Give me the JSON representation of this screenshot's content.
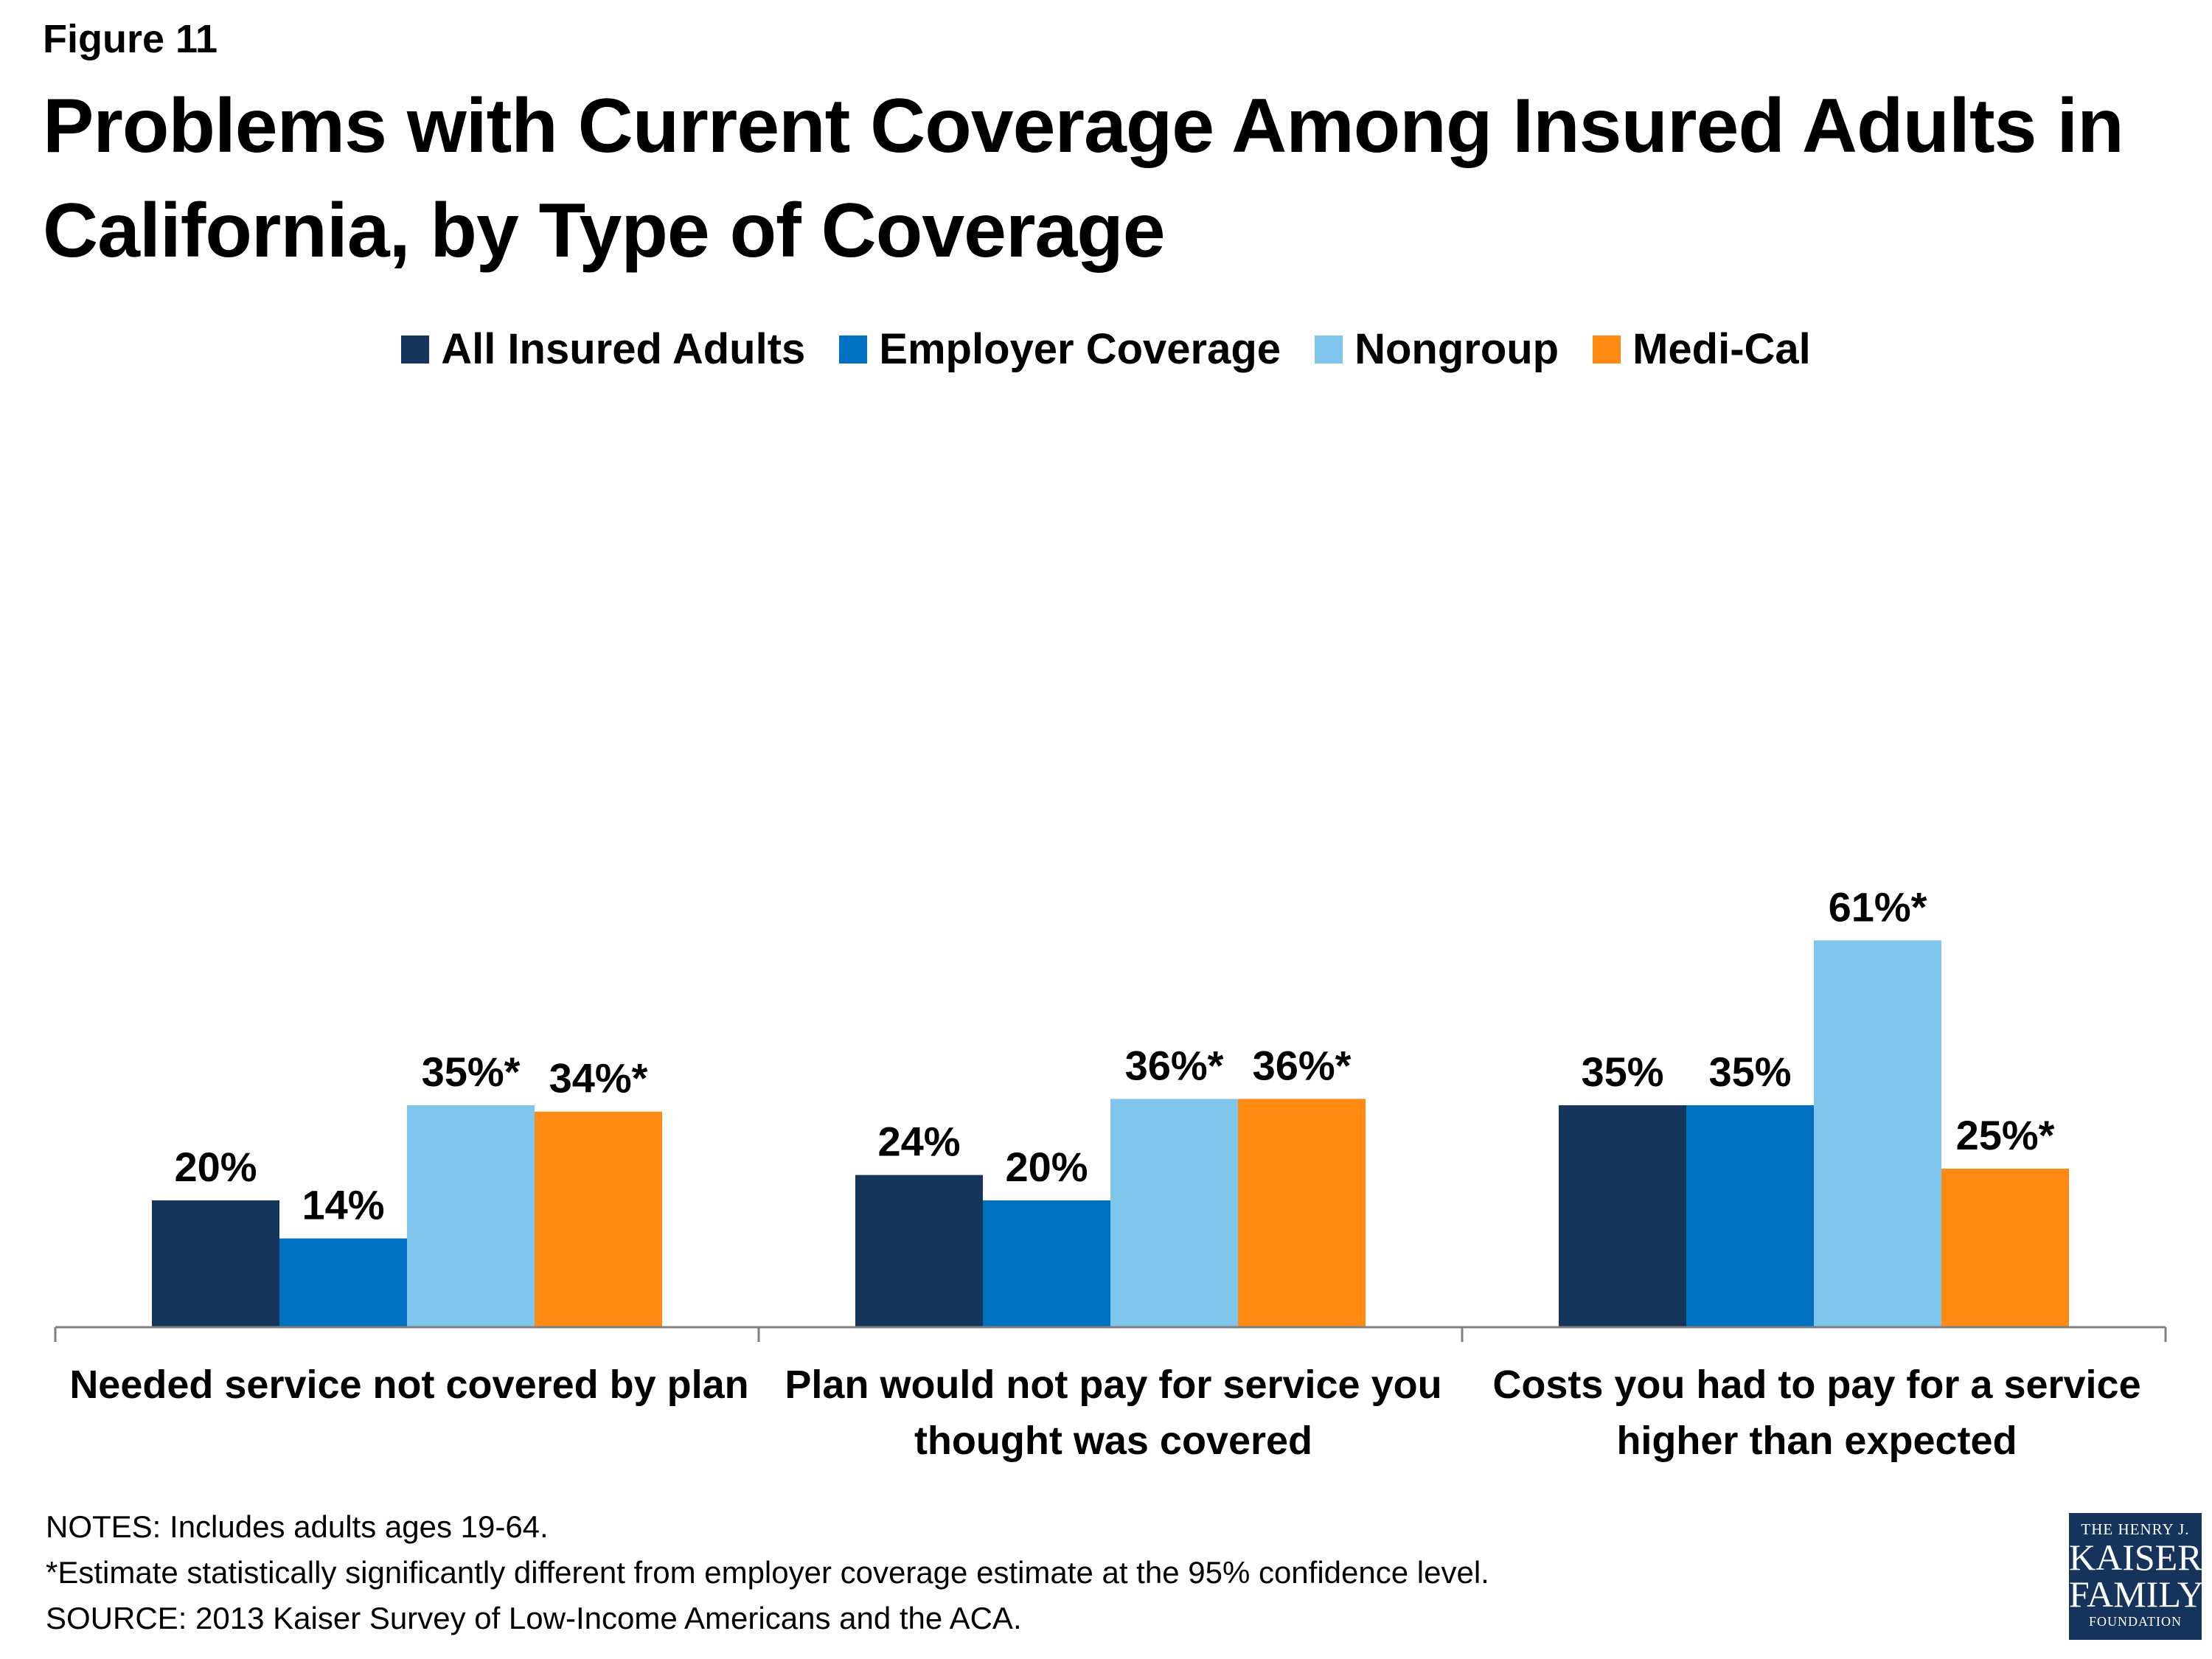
{
  "figure_label": "Figure 11",
  "title": "Problems with Current Coverage Among Insured Adults in California, by Type of Coverage",
  "colors": {
    "all_insured": "#16355b",
    "employer": "#0070c0",
    "nongroup": "#7fc5ec",
    "medical": "#ff8a14",
    "axis": "#808080"
  },
  "chart_data": {
    "type": "bar",
    "categories": [
      "Needed service not covered by plan",
      "Plan would not pay for service you thought was covered",
      "Costs you had to pay for a service higher than expected"
    ],
    "series": [
      {
        "name": "All Insured Adults",
        "values": [
          20,
          24,
          35
        ],
        "labels": [
          "20%",
          "24%",
          "35%"
        ]
      },
      {
        "name": "Employer Coverage",
        "values": [
          14,
          20,
          35
        ],
        "labels": [
          "14%",
          "20%",
          "35%"
        ]
      },
      {
        "name": "Nongroup",
        "values": [
          35,
          36,
          61
        ],
        "labels": [
          "35%*",
          "36%*",
          "61%*"
        ]
      },
      {
        "name": "Medi-Cal",
        "values": [
          34,
          36,
          25
        ],
        "labels": [
          "34%*",
          "36%*",
          "25%*"
        ]
      }
    ],
    "ylim": [
      0,
      100
    ],
    "grid": false,
    "legend": "top-center"
  },
  "notes": [
    "NOTES: Includes adults ages 19-64.",
    "*Estimate statistically significantly different from employer coverage estimate  at the 95% confidence level.",
    "SOURCE: 2013 Kaiser Survey of Low-Income Americans and the ACA."
  ],
  "logo": {
    "line1": "THE HENRY J.",
    "line2": "KAISER",
    "line3": "FAMILY",
    "line4": "FOUNDATION"
  }
}
